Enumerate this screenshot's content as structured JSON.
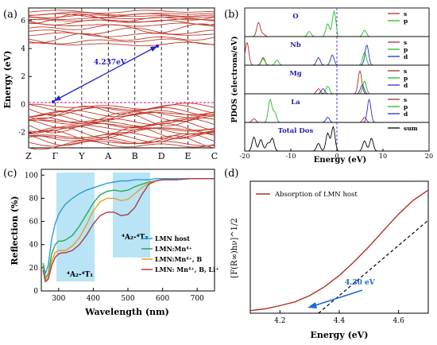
{
  "panels": {
    "a": {
      "label": "(a)",
      "ylabel": "Energy (eV)",
      "yticks": [
        -2,
        0,
        2,
        4,
        6
      ],
      "ylim": [
        -3.1,
        6.9
      ],
      "kpoints": [
        "Z",
        "Γ",
        "Y",
        "A",
        "B",
        "D",
        "E",
        "C"
      ],
      "gap_label": "4.237eV",
      "colors": {
        "bands": "#c0392b",
        "fermi": "#e040a0",
        "arrow": "#2222cc"
      }
    },
    "b": {
      "label": "(b)",
      "ylabel": "PDOS (electrons/eV)",
      "xlabel": "Energy  (eV)",
      "xticks": [
        -20,
        -10,
        0,
        10,
        20
      ],
      "xlim": [
        -20,
        20
      ],
      "subpanels": [
        {
          "name": "O",
          "legend": [
            "s",
            "p"
          ]
        },
        {
          "name": "Nb",
          "legend": [
            "s",
            "p",
            "d"
          ]
        },
        {
          "name": "Mg",
          "legend": [
            "s",
            "p",
            "d"
          ]
        },
        {
          "name": "La",
          "legend": [
            "s",
            "p",
            "d"
          ]
        },
        {
          "name": "Total Dos",
          "legend": [
            "sum"
          ]
        }
      ],
      "colors": {
        "s": "#b03020",
        "p": "#22bb22",
        "d": "#2233cc",
        "sum": "#000000",
        "fermi": "#6633cc"
      }
    },
    "c": {
      "label": "(c)",
      "ylabel": "Reflection (%)",
      "xlabel": "Wavelength (nm)",
      "annot1": "⁴A₂-⁴T₁",
      "annot2": "⁴A₂-⁴T₂",
      "band_color": "#b8e4f5"
    },
    "d": {
      "label": "(d)",
      "ylabel": "[F(R∞)hν]^1/2",
      "xlabel": "Energy (eV)",
      "legend": "Absorption of LMN host",
      "annot": "4.30 eV",
      "xticks": [
        4.2,
        4.4,
        4.6
      ],
      "colors": {
        "curve": "#b03020",
        "fit": "#000000",
        "arrow": "#1a6ad0"
      }
    }
  },
  "chart_data": [
    {
      "type": "line",
      "panel": "c",
      "xlabel": "Wavelength (nm)",
      "ylabel": "Reflection (%)",
      "xlim": [
        250,
        750
      ],
      "ylim": [
        0,
        105
      ],
      "xticks": [
        300,
        400,
        500,
        600,
        700
      ],
      "yticks": [
        0,
        20,
        40,
        60,
        80,
        100
      ],
      "x": [
        255,
        262,
        270,
        280,
        290,
        300,
        310,
        320,
        340,
        360,
        380,
        400,
        420,
        440,
        460,
        480,
        500,
        520,
        540,
        560,
        580,
        600,
        640,
        680,
        720,
        750
      ],
      "series": [
        {
          "name": "LMN host",
          "color": "#2b9bd6",
          "values": [
            24,
            15,
            22,
            45,
            58,
            66,
            71,
            75,
            80,
            84,
            87,
            89,
            91,
            93,
            94,
            95,
            95,
            96,
            96,
            96,
            97,
            97,
            97,
            97,
            97,
            97
          ]
        },
        {
          "name": "LMN:Mn⁴⁺",
          "color": "#22aa55",
          "values": [
            22,
            11,
            15,
            32,
            40,
            43,
            43,
            44,
            48,
            56,
            66,
            76,
            83,
            86,
            87,
            86,
            87,
            90,
            92,
            94,
            95,
            96,
            96,
            97,
            97,
            97
          ]
        },
        {
          "name": "LMN:Mn⁴⁺, B",
          "color": "#e8a020",
          "values": [
            20,
            9,
            12,
            26,
            33,
            35,
            35,
            35,
            39,
            46,
            57,
            69,
            77,
            80,
            80,
            78,
            79,
            84,
            89,
            93,
            95,
            96,
            96,
            97,
            97,
            97
          ]
        },
        {
          "name": "LMN: Mn⁴⁺, B, Li⁺",
          "color": "#b03a4a",
          "values": [
            18,
            8,
            10,
            22,
            29,
            32,
            33,
            33,
            35,
            40,
            48,
            58,
            65,
            68,
            68,
            65,
            66,
            72,
            83,
            92,
            95,
            96,
            96,
            97,
            97,
            97
          ]
        }
      ]
    },
    {
      "type": "line",
      "panel": "d",
      "xlabel": "Energy (eV)",
      "xlim": [
        4.1,
        4.7
      ],
      "x": [
        4.1,
        4.15,
        4.2,
        4.25,
        4.3,
        4.35,
        4.4,
        4.45,
        4.5,
        4.55,
        4.6,
        4.65,
        4.7
      ],
      "series": [
        {
          "name": "Absorption of LMN host",
          "values": [
            0.02,
            0.035,
            0.06,
            0.09,
            0.14,
            0.21,
            0.3,
            0.41,
            0.53,
            0.66,
            0.79,
            0.9,
            0.98
          ]
        }
      ],
      "fit_line": {
        "x": [
          4.33,
          4.7
        ],
        "y": [
          0.0,
          0.74
        ]
      },
      "edge_eV": 4.3
    }
  ]
}
